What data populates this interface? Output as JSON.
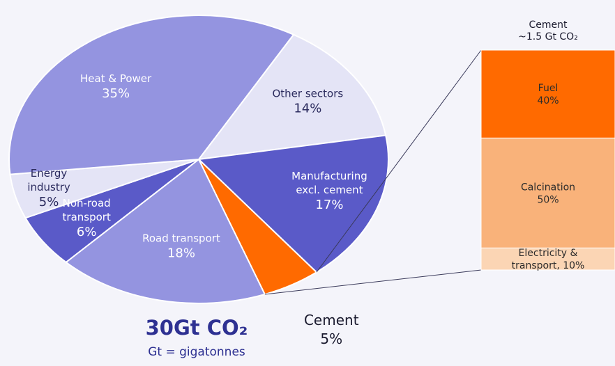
{
  "chart_data": {
    "type": "pie",
    "total_label": "30Gt CO₂",
    "unit_note": "Gt = gigatonnes",
    "slices": [
      {
        "label_lines": [
          "Other sectors"
        ],
        "value": 14,
        "value_label": "14%",
        "color": "#e4e4f6",
        "text_color": "#2b2b5e"
      },
      {
        "label_lines": [
          "Manufacturing",
          "excl. cement"
        ],
        "value": 17,
        "value_label": "17%",
        "color": "#5a5ac8",
        "text_color": "#ffffff"
      },
      {
        "label_lines": [
          "Cement"
        ],
        "value": 5,
        "value_label": "5%",
        "color": "#ff6a00",
        "text_color": "#1a1a2e"
      },
      {
        "label_lines": [
          "Road transport"
        ],
        "value": 18,
        "value_label": "18%",
        "color": "#9494e0",
        "text_color": "#ffffff"
      },
      {
        "label_lines": [
          "Non-road",
          "transport"
        ],
        "value": 6,
        "value_label": "6%",
        "color": "#5a5ac8",
        "text_color": "#ffffff"
      },
      {
        "label_lines": [
          "Energy",
          "industry"
        ],
        "value": 5,
        "value_label": "5%",
        "color": "#e4e4f6",
        "text_color": "#2b2b5e"
      },
      {
        "label_lines": [
          "Heat & Power"
        ],
        "value": 35,
        "value_label": "35%",
        "color": "#9494e0",
        "text_color": "#ffffff"
      }
    ],
    "breakdown": {
      "title_lines": [
        "Cement",
        "~1.5 Gt CO₂"
      ],
      "segments": [
        {
          "label_lines": [
            "Fuel",
            "40%"
          ],
          "value": 40,
          "color": "#ff6a00",
          "text_color": "#2b2b2b"
        },
        {
          "label_lines": [
            "Calcination",
            "50%"
          ],
          "value": 50,
          "color": "#f9b27a",
          "text_color": "#2b2b2b"
        },
        {
          "label_lines": [
            "Electricity &",
            "transport, 10%"
          ],
          "value": 10,
          "color": "#fbd5b4",
          "text_color": "#2b2b2b"
        }
      ]
    }
  }
}
